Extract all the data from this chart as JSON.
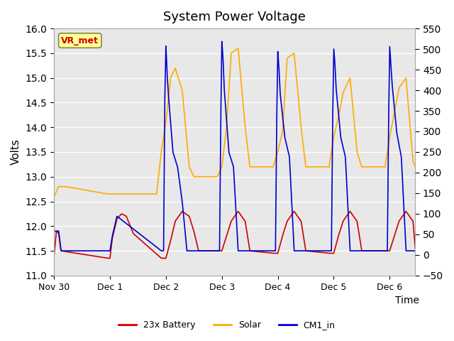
{
  "title": "System Power Voltage",
  "xlabel": "Time",
  "ylabel": "Volts",
  "ylim": [
    11.0,
    16.0
  ],
  "ylim2": [
    -50,
    550
  ],
  "yticks": [
    11.0,
    11.5,
    12.0,
    12.5,
    13.0,
    13.5,
    14.0,
    14.5,
    15.0,
    15.5,
    16.0
  ],
  "yticks2": [
    -50,
    0,
    50,
    100,
    150,
    200,
    250,
    300,
    350,
    400,
    450,
    500,
    550
  ],
  "xtick_labels": [
    "Nov 30",
    "Dec 1",
    "Dec 2",
    "Dec 3",
    "Dec 4",
    "Dec 5",
    "Dec 6"
  ],
  "xtick_pos": [
    0,
    24,
    48,
    72,
    96,
    120,
    144
  ],
  "xlim": [
    0,
    155
  ],
  "bg_color": "#e8e8e8",
  "fig_color": "#ffffff",
  "grid_color": "#ffffff",
  "legend_labels": [
    "23x Battery",
    "Solar",
    "CM1_in"
  ],
  "legend_colors": [
    "#cc0000",
    "#ffaa00",
    "#0000cc"
  ],
  "vr_met_label": "VR_met",
  "vr_met_bg": "#ffff99",
  "vr_met_border": "#888844",
  "vr_met_text_color": "#cc0000"
}
